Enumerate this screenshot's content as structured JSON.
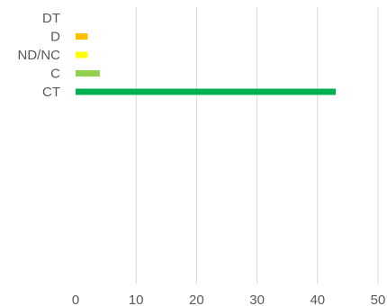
{
  "chart_data": {
    "type": "bar",
    "orientation": "horizontal",
    "categories": [
      "DT",
      "D",
      "ND/NC",
      "C",
      "CT"
    ],
    "values": [
      0,
      2,
      2,
      4,
      43
    ],
    "colors": [
      "#00b050",
      "#ffc000",
      "#ffff00",
      "#92d050",
      "#00b050"
    ],
    "xlim": [
      0,
      50
    ],
    "xticks": [
      0,
      10,
      20,
      30,
      40,
      50
    ],
    "grid": true,
    "title": "",
    "xlabel": "",
    "ylabel": ""
  }
}
